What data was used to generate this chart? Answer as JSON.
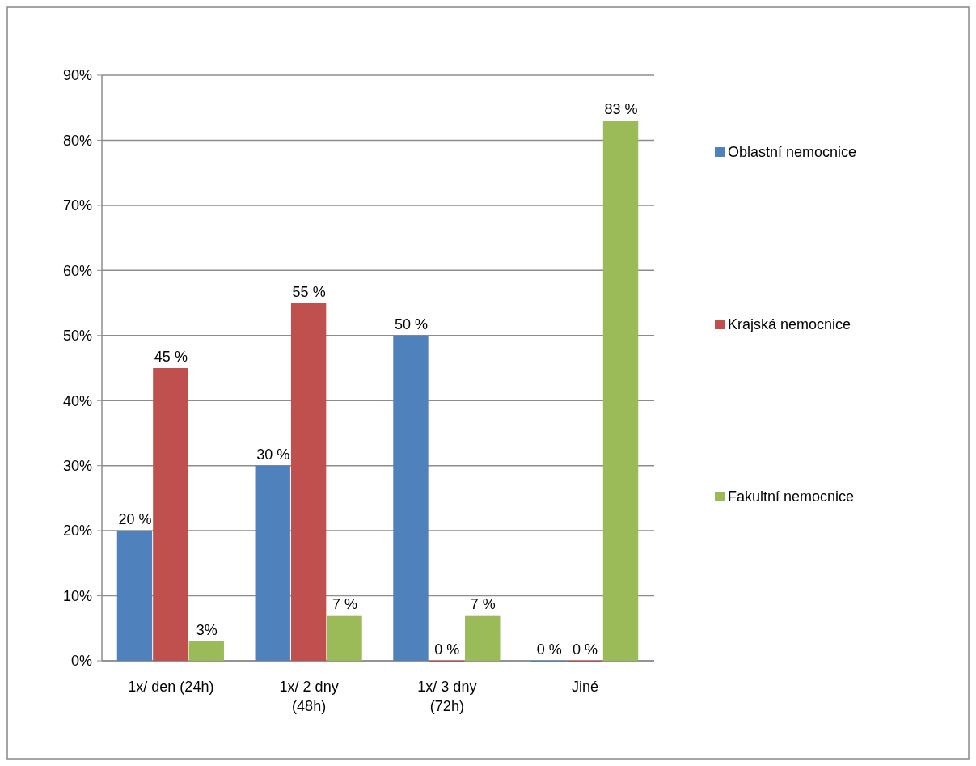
{
  "chart_data": {
    "type": "bar",
    "categories": [
      "1x/ den (24h)",
      "1x/ 2 dny (48h)",
      "1x/ 3 dny (72h)",
      "Jiné"
    ],
    "series": [
      {
        "name": "Oblastní nemocnice",
        "color": "#4f81bd",
        "values": [
          20,
          30,
          50,
          0
        ],
        "value_labels": [
          "20 %",
          "30 %",
          "50 %",
          "0 %"
        ]
      },
      {
        "name": "Krajská nemocnice",
        "color": "#c0504d",
        "values": [
          45,
          55,
          0,
          0
        ],
        "value_labels": [
          "45 %",
          "55 %",
          "0 %",
          "0 %"
        ]
      },
      {
        "name": "Fakultní nemocnice",
        "color": "#9bbb59",
        "values": [
          3,
          7,
          7,
          83
        ],
        "value_labels": [
          "3%",
          "7 %",
          "7 %",
          "83 %"
        ]
      }
    ],
    "ylim": [
      0,
      90
    ],
    "yticks": [
      {
        "value": 0,
        "label": "0%"
      },
      {
        "value": 10,
        "label": "10%"
      },
      {
        "value": 20,
        "label": "20%"
      },
      {
        "value": 30,
        "label": "30%"
      },
      {
        "value": 40,
        "label": "40%"
      },
      {
        "value": 50,
        "label": "50%"
      },
      {
        "value": 60,
        "label": "60%"
      },
      {
        "value": 70,
        "label": "70%"
      },
      {
        "value": 80,
        "label": "80%"
      },
      {
        "value": 90,
        "label": "90%"
      }
    ],
    "grid": "y",
    "legend": "right"
  }
}
